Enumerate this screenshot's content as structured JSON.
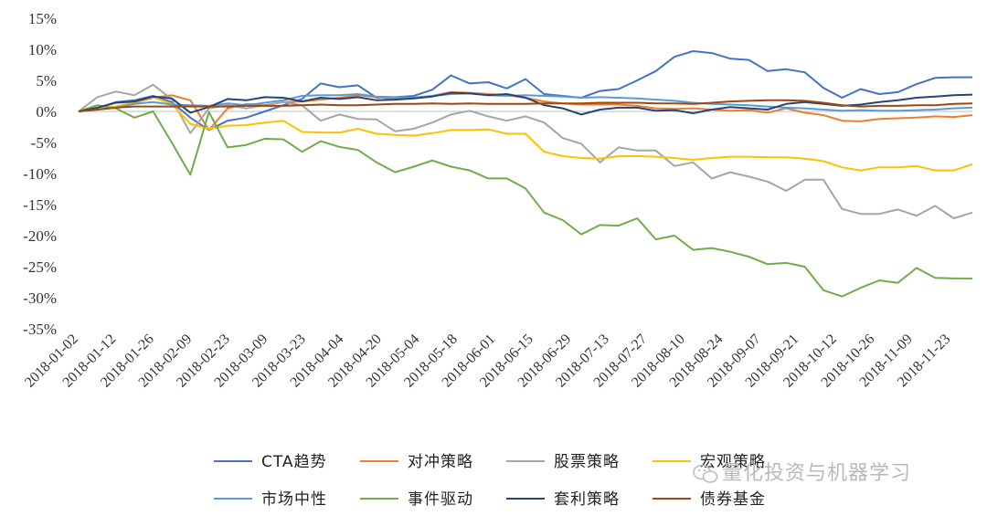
{
  "chart_data": {
    "type": "line",
    "title": "",
    "xlabel": "",
    "ylabel": "",
    "ylim": [
      -35,
      15
    ],
    "yticks": [
      15,
      10,
      5,
      0,
      -5,
      -10,
      -15,
      -20,
      -25,
      -30,
      -35
    ],
    "ytick_suffix": "%",
    "x_tick_labels": [
      "2018-01-02",
      "2018-01-12",
      "2018-01-26",
      "2018-02-09",
      "2018-02-23",
      "2018-03-09",
      "2018-03-23",
      "2018-04-04",
      "2018-04-20",
      "2018-05-04",
      "2018-05-18",
      "2018-06-01",
      "2018-06-15",
      "2018-06-29",
      "2018-07-13",
      "2018-07-27",
      "2018-08-10",
      "2018-08-24",
      "2018-09-07",
      "2018-09-21",
      "2018-10-12",
      "2018-10-26",
      "2018-11-09",
      "2018-11-23"
    ],
    "n_points": 49,
    "legend_position": "bottom",
    "grid": false,
    "series": [
      {
        "name": "CTA趋势",
        "color": "#4472C4",
        "values": [
          0,
          0.5,
          1.5,
          1.8,
          2.5,
          1.5,
          -1,
          -3,
          -1.5,
          -1,
          0,
          1,
          2,
          4.5,
          3.9,
          4.2,
          2.2,
          2.3,
          2.5,
          3.5,
          5.8,
          4.5,
          4.7,
          3.7,
          5.2,
          2.8,
          2.5,
          2.2,
          3.3,
          3.6,
          5,
          6.5,
          8.8,
          9.7,
          9.4,
          8.5,
          8.3,
          6.5,
          6.8,
          6.3,
          3.8,
          2.2,
          3.6,
          2.8,
          3.1,
          4.4,
          5.4,
          5.5,
          5.5
        ]
      },
      {
        "name": "对冲策略",
        "color": "#ED7D31",
        "values": [
          0,
          0.4,
          0.8,
          1.4,
          2.2,
          2.6,
          1.8,
          -3,
          0.5,
          1.2,
          1,
          1.5,
          1.6,
          1.9,
          2.2,
          2.6,
          2.3,
          2,
          2.2,
          2.5,
          3.1,
          3,
          2.8,
          2.6,
          2.2,
          1.6,
          1.3,
          1.1,
          1.1,
          1.1,
          0.9,
          0.5,
          0.4,
          0.5,
          0.3,
          0.1,
          0.2,
          -0.2,
          0.5,
          -0.2,
          -0.6,
          -1.5,
          -1.6,
          -1.2,
          -1.1,
          -1,
          -0.8,
          -0.9,
          -0.6
        ]
      },
      {
        "name": "股票策略",
        "color": "#A5A5A5",
        "values": [
          0,
          2.3,
          3.2,
          2.6,
          4.3,
          2,
          -3.5,
          0.5,
          1,
          0.5,
          1,
          1.5,
          1,
          -1.5,
          -0.5,
          -1.2,
          -1.3,
          -3.2,
          -2.8,
          -1.8,
          -0.5,
          0.1,
          -0.8,
          -1.5,
          -0.8,
          -1.8,
          -4.3,
          -5.2,
          -8.2,
          -5.8,
          -6.3,
          -6.3,
          -8.8,
          -8.2,
          -10.8,
          -9.8,
          -10.5,
          -11.3,
          -12.8,
          -11,
          -11,
          -15.7,
          -16.5,
          -16.5,
          -15.8,
          -16.8,
          -15.2,
          -17.2,
          -16.3
        ]
      },
      {
        "name": "宏观策略",
        "color": "#FFC000",
        "values": [
          0,
          0.5,
          0.8,
          1.5,
          2.3,
          1.2,
          -2,
          -2.8,
          -2.3,
          -2.2,
          -1.8,
          -1.5,
          -3.3,
          -3.4,
          -3.4,
          -2.8,
          -3.6,
          -3.8,
          -3.9,
          -3.5,
          -3,
          -3,
          -2.9,
          -3.6,
          -3.6,
          -6.5,
          -7.2,
          -7.5,
          -7.6,
          -7.2,
          -7.2,
          -7.3,
          -7.5,
          -7.8,
          -7.5,
          -7.3,
          -7.3,
          -7.4,
          -7.4,
          -7.6,
          -8,
          -9,
          -9.5,
          -9,
          -9,
          -8.8,
          -9.5,
          -9.5,
          -8.5
        ]
      },
      {
        "name": "市场中性",
        "color": "#5B9BD5",
        "values": [
          0,
          0.3,
          0.6,
          1.2,
          1.5,
          1.1,
          1,
          0.9,
          1.3,
          1,
          1.4,
          1.8,
          2.5,
          2.6,
          2.6,
          2.8,
          2.4,
          2.3,
          2.2,
          2.5,
          2.8,
          2.9,
          2.6,
          2.5,
          2.6,
          2.5,
          2.4,
          2.2,
          2.3,
          2.2,
          2.1,
          1.9,
          1.7,
          1.4,
          1.2,
          1.1,
          1,
          0.8,
          0.6,
          0.5,
          0.3,
          0.1,
          0.2,
          0.1,
          0.1,
          0.2,
          0.3,
          0.5,
          0.6
        ]
      },
      {
        "name": "事件驱动",
        "color": "#70AD47",
        "values": [
          0,
          1,
          0.5,
          -1,
          0,
          -5,
          -10.2,
          -0.1,
          -5.8,
          -5.4,
          -4.4,
          -4.5,
          -6.5,
          -4.8,
          -5.7,
          -6.2,
          -8.2,
          -9.8,
          -8.9,
          -7.9,
          -8.9,
          -9.5,
          -10.8,
          -10.8,
          -12.4,
          -16.3,
          -17.5,
          -19.8,
          -18.3,
          -18.4,
          -17.2,
          -20.6,
          -20,
          -22.3,
          -22,
          -22.6,
          -23.4,
          -24.6,
          -24.4,
          -25,
          -28.8,
          -29.8,
          -28.4,
          -27.2,
          -27.6,
          -25.2,
          -26.8,
          -26.9,
          -26.9
        ]
      },
      {
        "name": "套利策略",
        "color": "#264478",
        "values": [
          0,
          0.6,
          1.4,
          1.6,
          2.4,
          2.1,
          -0.2,
          0.7,
          2,
          1.8,
          2.3,
          2.2,
          1.6,
          2.2,
          2,
          2.3,
          1.8,
          1.9,
          2.1,
          2.4,
          3,
          2.9,
          2.6,
          2.8,
          2.2,
          1,
          0.5,
          -0.5,
          0.3,
          0.6,
          0.6,
          0.1,
          0.2,
          -0.3,
          0.3,
          0.7,
          0.5,
          0.3,
          1.2,
          1.5,
          1.2,
          0.9,
          1.1,
          1.5,
          1.8,
          2.2,
          2.4,
          2.6,
          2.7
        ]
      },
      {
        "name": "债券基金",
        "color": "#9E480E",
        "values": [
          0,
          0.3,
          0.6,
          0.8,
          0.8,
          0.8,
          0.8,
          0.8,
          0.8,
          0.9,
          0.9,
          0.9,
          1,
          1.1,
          1,
          1,
          1.1,
          1.2,
          1.2,
          1.3,
          1.2,
          1.3,
          1.2,
          1.2,
          1.2,
          1.3,
          1.3,
          1.3,
          1.4,
          1.4,
          1.4,
          1.3,
          1.3,
          1.2,
          1.4,
          1.6,
          1.7,
          1.8,
          1.8,
          1.7,
          1.4,
          1,
          0.8,
          0.9,
          0.9,
          1,
          1,
          1.2,
          1.3
        ]
      }
    ]
  },
  "watermark": {
    "text": "量化投资与机器学习",
    "icon": "wechat-icon"
  }
}
